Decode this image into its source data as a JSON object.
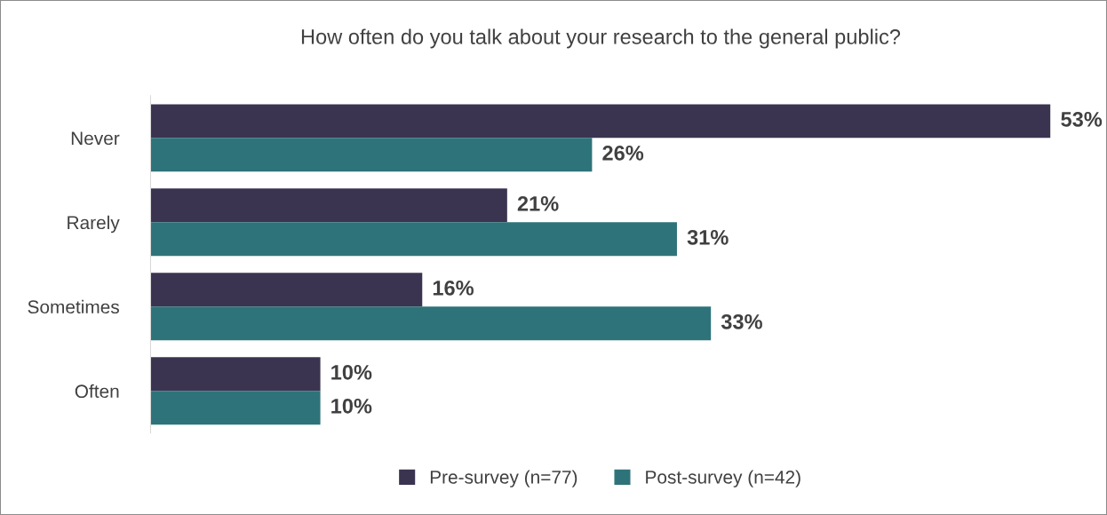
{
  "chart_data": {
    "type": "bar",
    "orientation": "horizontal",
    "title": "How often do you talk about your research to the general public?",
    "categories": [
      "Never",
      "Rarely",
      "Sometimes",
      "Often"
    ],
    "series": [
      {
        "name": "Pre-survey (n=77)",
        "color": "#3b3450",
        "values": [
          53,
          21,
          16,
          10
        ],
        "value_labels": [
          "53%",
          "21%",
          "16%",
          "10%"
        ]
      },
      {
        "name": "Post-survey (n=42)",
        "color": "#2e737a",
        "values": [
          26,
          31,
          33,
          10
        ],
        "value_labels": [
          "26%",
          "31%",
          "33%",
          "10%"
        ]
      }
    ],
    "legend": "bottom"
  }
}
